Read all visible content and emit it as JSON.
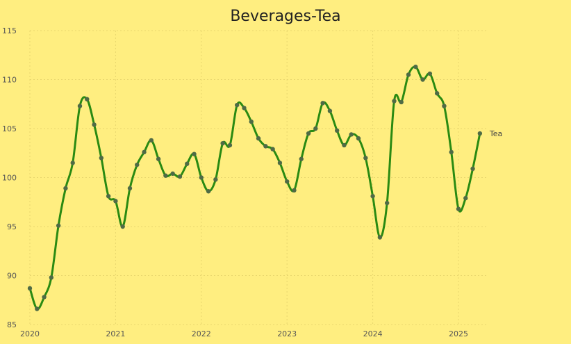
{
  "chart_data": {
    "type": "line",
    "title": "Beverages-Tea",
    "xlabel": "",
    "ylabel": "",
    "ylim": [
      85,
      115
    ],
    "yticks": [
      85,
      90,
      95,
      100,
      105,
      110,
      115
    ],
    "xticks": [
      {
        "label": "2020",
        "year": 2020
      },
      {
        "label": "2021",
        "year": 2021
      },
      {
        "label": "2022",
        "year": 2022
      },
      {
        "label": "2023",
        "year": 2023
      },
      {
        "label": "2024",
        "year": 2024
      },
      {
        "label": "2025",
        "year": 2025
      }
    ],
    "grid": true,
    "colors": {
      "line": "#2A8A12",
      "marker": "#4F6B45",
      "background": "#FFEE80"
    },
    "series": [
      {
        "name": "Tea",
        "x": [
          "2020-01",
          "2020-02",
          "2020-03",
          "2020-04",
          "2020-05",
          "2020-06",
          "2020-07",
          "2020-08",
          "2020-09",
          "2020-10",
          "2020-11",
          "2020-12",
          "2021-01",
          "2021-02",
          "2021-03",
          "2021-04",
          "2021-05",
          "2021-06",
          "2021-07",
          "2021-08",
          "2021-09",
          "2021-10",
          "2021-11",
          "2021-12",
          "2022-01",
          "2022-02",
          "2022-03",
          "2022-04",
          "2022-05",
          "2022-06",
          "2022-07",
          "2022-08",
          "2022-09",
          "2022-10",
          "2022-11",
          "2022-12",
          "2023-01",
          "2023-02",
          "2023-03",
          "2023-04",
          "2023-05",
          "2023-06",
          "2023-07",
          "2023-08",
          "2023-09",
          "2023-10",
          "2023-11",
          "2023-12",
          "2024-01",
          "2024-02",
          "2024-03",
          "2024-04",
          "2024-05",
          "2024-06",
          "2024-07",
          "2024-08",
          "2024-09",
          "2024-10",
          "2024-11",
          "2024-12",
          "2025-01",
          "2025-02",
          "2025-03",
          "2025-04"
        ],
        "values": [
          88.7,
          86.6,
          87.8,
          89.8,
          95.1,
          98.9,
          101.5,
          107.3,
          108.0,
          105.4,
          102.0,
          98.1,
          97.6,
          95.0,
          98.9,
          101.3,
          102.6,
          103.8,
          101.9,
          100.2,
          100.4,
          100.1,
          101.4,
          102.4,
          100.0,
          98.6,
          99.8,
          103.5,
          103.3,
          107.4,
          107.1,
          105.7,
          104.0,
          103.2,
          102.9,
          101.5,
          99.6,
          98.7,
          101.9,
          104.5,
          105.0,
          107.6,
          106.8,
          104.8,
          103.3,
          104.4,
          104.0,
          102.0,
          98.1,
          93.9,
          97.4,
          107.8,
          107.7,
          110.5,
          111.3,
          110.0,
          110.6,
          108.6,
          107.3,
          102.6,
          96.8,
          97.9,
          100.9,
          104.5
        ]
      }
    ]
  }
}
